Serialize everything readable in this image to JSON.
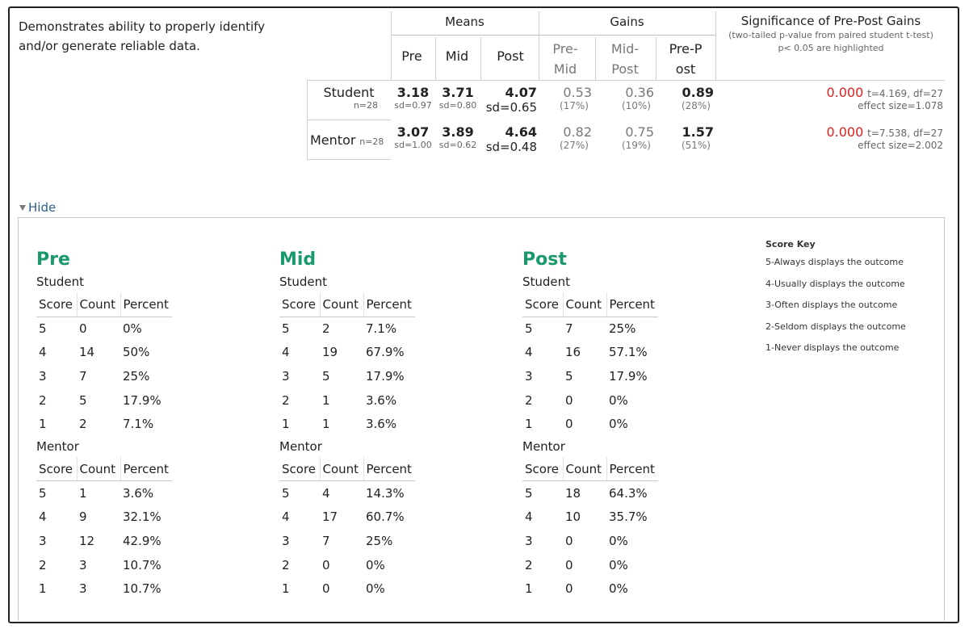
{
  "outcome": "Demonstrates ability to properly identify and/or generate reliable data.",
  "headers": {
    "means": "Means",
    "gains": "Gains",
    "sig_title": "Significance of Pre-Post Gains",
    "sig_sub1": "(two-tailed p-value from paired student t-test)",
    "sig_sub2": "p< 0.05 are highlighted",
    "pre": "Pre",
    "mid": "Mid",
    "post": "Post",
    "pre_mid": "Pre-Mid",
    "mid_post": "Mid-Post",
    "pre_post": "Pre-Post"
  },
  "rows": [
    {
      "label": "Student",
      "n": "n=28",
      "pre": "3.18",
      "pre_sd": "sd=0.97",
      "mid": "3.71",
      "mid_sd": "sd=0.80",
      "post": "4.07",
      "post_sd": "sd=0.65",
      "g1": "0.53",
      "g1p": "(17%)",
      "g2": "0.36",
      "g2p": "(10%)",
      "g3": "0.89",
      "g3p": "(28%)",
      "p": "0.000",
      "t": "t=4.169, df=27",
      "es": "effect size=1.078"
    },
    {
      "label": "Mentor",
      "n": "n=28",
      "pre": "3.07",
      "pre_sd": "sd=1.00",
      "mid": "3.89",
      "mid_sd": "sd=0.62",
      "post": "4.64",
      "post_sd": "sd=0.48",
      "g1": "0.82",
      "g1p": "(27%)",
      "g2": "0.75",
      "g2p": "(19%)",
      "g3": "1.57",
      "g3p": "(51%)",
      "p": "0.000",
      "t": "t=7.538, df=27",
      "es": "effect size=2.002"
    }
  ],
  "toggle": "Hide",
  "table_headers": {
    "score": "Score",
    "count": "Count",
    "percent": "Percent"
  },
  "groups": {
    "student": "Student",
    "mentor": "Mentor"
  },
  "columns": [
    {
      "title": "Pre",
      "student": [
        [
          "5",
          "0",
          "0%"
        ],
        [
          "4",
          "14",
          "50%"
        ],
        [
          "3",
          "7",
          "25%"
        ],
        [
          "2",
          "5",
          "17.9%"
        ],
        [
          "1",
          "2",
          "7.1%"
        ]
      ],
      "mentor": [
        [
          "5",
          "1",
          "3.6%"
        ],
        [
          "4",
          "9",
          "32.1%"
        ],
        [
          "3",
          "12",
          "42.9%"
        ],
        [
          "2",
          "3",
          "10.7%"
        ],
        [
          "1",
          "3",
          "10.7%"
        ]
      ]
    },
    {
      "title": "Mid",
      "student": [
        [
          "5",
          "2",
          "7.1%"
        ],
        [
          "4",
          "19",
          "67.9%"
        ],
        [
          "3",
          "5",
          "17.9%"
        ],
        [
          "2",
          "1",
          "3.6%"
        ],
        [
          "1",
          "1",
          "3.6%"
        ]
      ],
      "mentor": [
        [
          "5",
          "4",
          "14.3%"
        ],
        [
          "4",
          "17",
          "60.7%"
        ],
        [
          "3",
          "7",
          "25%"
        ],
        [
          "2",
          "0",
          "0%"
        ],
        [
          "1",
          "0",
          "0%"
        ]
      ]
    },
    {
      "title": "Post",
      "student": [
        [
          "5",
          "7",
          "25%"
        ],
        [
          "4",
          "16",
          "57.1%"
        ],
        [
          "3",
          "5",
          "17.9%"
        ],
        [
          "2",
          "0",
          "0%"
        ],
        [
          "1",
          "0",
          "0%"
        ]
      ],
      "mentor": [
        [
          "5",
          "18",
          "64.3%"
        ],
        [
          "4",
          "10",
          "35.7%"
        ],
        [
          "3",
          "0",
          "0%"
        ],
        [
          "2",
          "0",
          "0%"
        ],
        [
          "1",
          "0",
          "0%"
        ]
      ]
    }
  ],
  "score_key": {
    "title": "Score Key",
    "items": [
      "5-Always displays the outcome",
      "4-Usually displays the outcome",
      "3-Often displays the outcome",
      "2-Seldom displays the outcome",
      "1-Never displays the outcome"
    ]
  },
  "colors": {
    "highlight": "#e02020",
    "column_title": "#1a9a6b",
    "link": "#2a5d8f"
  }
}
